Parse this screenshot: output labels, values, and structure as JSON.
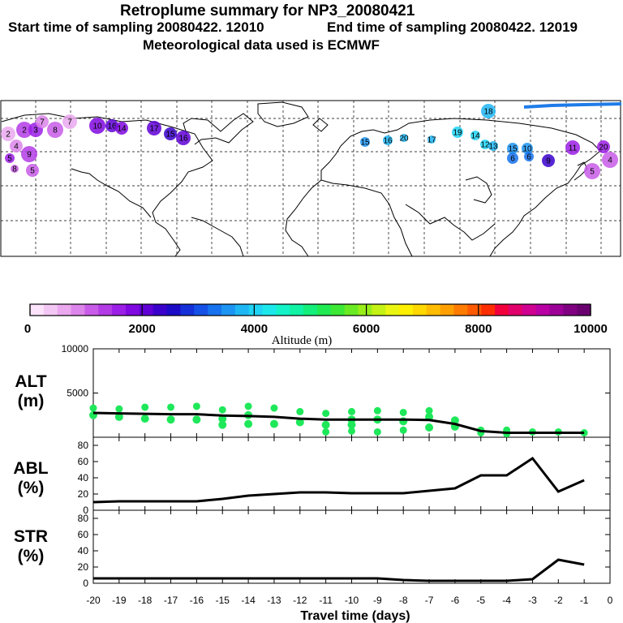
{
  "header": {
    "title": "Retroplume summary for NP3_20080421",
    "start_label": "Start time of sampling 20080422. 12010",
    "end_label": "End time of sampling 20080422. 12019",
    "met_label": "Meteorological data used is ECMWF"
  },
  "map": {
    "labels": [
      "2",
      "4",
      "2",
      "3",
      "7",
      "8",
      "7",
      "10",
      "16",
      "14",
      "17",
      "15",
      "16",
      "15",
      "16",
      "20",
      "17",
      "18",
      "19",
      "14",
      "12",
      "13",
      "15",
      "10",
      "6",
      "6",
      "9",
      "11",
      "4",
      "5",
      "5",
      "9",
      "8",
      "5",
      "20"
    ]
  },
  "colorbar": {
    "colors": [
      "#fbe3fb",
      "#f3c7f3",
      "#eaa8ee",
      "#dc85ea",
      "#c85ce8",
      "#b33ce6",
      "#9b1fe6",
      "#8008e0",
      "#5f00d6",
      "#3a00cc",
      "#1c0bc6",
      "#1530d8",
      "#1551e6",
      "#1672ee",
      "#1c94f2",
      "#1fb6f4",
      "#1ed3f4",
      "#1ce8ec",
      "#14f2c8",
      "#10f2a4",
      "#14ee7a",
      "#20ea52",
      "#3ce834",
      "#6aea22",
      "#98ee18",
      "#c4f214",
      "#eaf612",
      "#fff000",
      "#ffd800",
      "#ffbc00",
      "#ffa000",
      "#ff7c00",
      "#ff5a00",
      "#ff2e00",
      "#f2003c",
      "#e2006c",
      "#d00090",
      "#b800a4",
      "#9c0096",
      "#800082",
      "#6a0070"
    ],
    "tick_labels": [
      "0",
      "2000",
      "4000",
      "6000",
      "8000",
      "10000"
    ],
    "axis_label": "Altitude (m)",
    "min": 0,
    "max": 10000
  },
  "chart_data": [
    {
      "type": "scatter",
      "panel": "ALT",
      "ylabel": "ALT\n(m)",
      "ylabel_line1": "ALT",
      "ylabel_line2": "(m)",
      "xlim": [
        -20,
        0
      ],
      "ylim": [
        0,
        10000
      ],
      "ytick_labels": [
        "10000",
        "5000"
      ],
      "series": [
        {
          "name": "median altitude",
          "type": "line",
          "x": [
            -20,
            -19,
            -18,
            -17,
            -16,
            -15,
            -14,
            -13,
            -12,
            -11,
            -10,
            -9,
            -8,
            -7,
            -6,
            -5,
            -4,
            -3,
            -2,
            -1
          ],
          "y": [
            2750,
            2700,
            2650,
            2600,
            2600,
            2450,
            2400,
            2300,
            2100,
            2000,
            2000,
            2000,
            2000,
            1950,
            1500,
            700,
            500,
            500,
            500,
            500
          ]
        },
        {
          "name": "plume clusters",
          "type": "scatter",
          "color": "#1ee85a",
          "points": [
            {
              "x": -20,
              "y": 3300
            },
            {
              "x": -20,
              "y": 2500
            },
            {
              "x": -19,
              "y": 3200
            },
            {
              "x": -19,
              "y": 2300
            },
            {
              "x": -18,
              "y": 3400
            },
            {
              "x": -18,
              "y": 2100
            },
            {
              "x": -17,
              "y": 3400
            },
            {
              "x": -17,
              "y": 2000
            },
            {
              "x": -16,
              "y": 3500
            },
            {
              "x": -16,
              "y": 2000
            },
            {
              "x": -15,
              "y": 3100
            },
            {
              "x": -15,
              "y": 2100
            },
            {
              "x": -15,
              "y": 1400
            },
            {
              "x": -14,
              "y": 3500
            },
            {
              "x": -14,
              "y": 2500
            },
            {
              "x": -14,
              "y": 1500
            },
            {
              "x": -13,
              "y": 3300
            },
            {
              "x": -13,
              "y": 1500
            },
            {
              "x": -12,
              "y": 2900
            },
            {
              "x": -12,
              "y": 1700
            },
            {
              "x": -11,
              "y": 2700
            },
            {
              "x": -11,
              "y": 1400
            },
            {
              "x": -11,
              "y": 600
            },
            {
              "x": -10,
              "y": 2900
            },
            {
              "x": -10,
              "y": 2000
            },
            {
              "x": -10,
              "y": 1400
            },
            {
              "x": -10,
              "y": 700
            },
            {
              "x": -9,
              "y": 3000
            },
            {
              "x": -9,
              "y": 2000
            },
            {
              "x": -9,
              "y": 600
            },
            {
              "x": -8,
              "y": 2800
            },
            {
              "x": -8,
              "y": 1800
            },
            {
              "x": -8,
              "y": 800
            },
            {
              "x": -7,
              "y": 3000
            },
            {
              "x": -7,
              "y": 2300
            },
            {
              "x": -7,
              "y": 1100
            },
            {
              "x": -6,
              "y": 1900
            },
            {
              "x": -6,
              "y": 1200
            },
            {
              "x": -5,
              "y": 800
            },
            {
              "x": -5,
              "y": 500
            },
            {
              "x": -4,
              "y": 800
            },
            {
              "x": -4,
              "y": 400
            },
            {
              "x": -3,
              "y": 600
            },
            {
              "x": -2,
              "y": 600
            },
            {
              "x": -1,
              "y": 500
            }
          ]
        }
      ]
    },
    {
      "type": "line",
      "panel": "ABL",
      "ylabel_line1": "ABL",
      "ylabel_line2": "(%)",
      "xlim": [
        -20,
        0
      ],
      "ylim": [
        0,
        90
      ],
      "ytick_labels": [
        "0",
        "20",
        "40",
        "60",
        "80"
      ],
      "x": [
        -20,
        -19,
        -18,
        -17,
        -16,
        -15,
        -14,
        -13,
        -12,
        -11,
        -10,
        -9,
        -8,
        -7,
        -6,
        -5,
        -4,
        -3,
        -2,
        -1
      ],
      "y": [
        10,
        11,
        11,
        11,
        11,
        14,
        18,
        20,
        22,
        22,
        21,
        21,
        21,
        24,
        27,
        43,
        43,
        64,
        23,
        37
      ]
    },
    {
      "type": "line",
      "panel": "STR",
      "ylabel_line1": "STR",
      "ylabel_line2": "(%)",
      "xlim": [
        -20,
        0
      ],
      "ylim": [
        0,
        90
      ],
      "ytick_labels": [
        "0",
        "20",
        "40",
        "60",
        "80"
      ],
      "x": [
        -20,
        -19,
        -18,
        -17,
        -16,
        -15,
        -14,
        -13,
        -12,
        -11,
        -10,
        -9,
        -8,
        -7,
        -6,
        -5,
        -4,
        -3,
        -2,
        -1
      ],
      "y": [
        6,
        6,
        6,
        6,
        6,
        6,
        6,
        6,
        6,
        6,
        6,
        6,
        4,
        3,
        3,
        3,
        3,
        5,
        29,
        23
      ],
      "xticks": [
        -20,
        -19,
        -18,
        -17,
        -16,
        -15,
        -14,
        -13,
        -12,
        -11,
        -10,
        -9,
        -8,
        -7,
        -6,
        -5,
        -4,
        -3,
        -2,
        -1,
        0
      ],
      "xtick_labels": [
        "-20",
        "-19",
        "-18",
        "-17",
        "-16",
        "-15",
        "-14",
        "-13",
        "-12",
        "-11",
        "-10",
        "-9",
        "-8",
        "-7",
        "-6",
        "-5",
        "-4",
        "-3",
        "-2",
        "-1",
        "0"
      ],
      "xlabel": "Travel time (days)"
    }
  ]
}
